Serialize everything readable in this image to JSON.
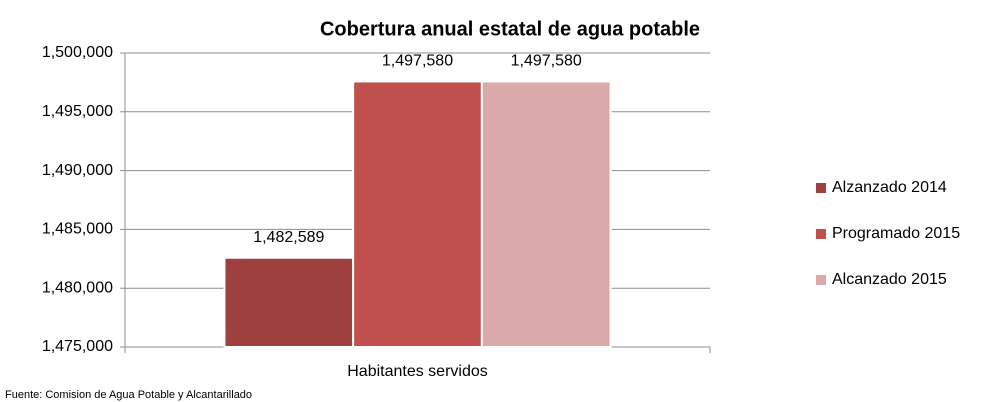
{
  "chart_data": {
    "type": "bar",
    "title": "Cobertura anual estatal de agua potable",
    "categories": [
      "Habitantes servidos"
    ],
    "series": [
      {
        "name": "Alzanzado 2014",
        "color": "#9e413e",
        "values": [
          1482589
        ],
        "value_labels": [
          "1,482,589"
        ]
      },
      {
        "name": "Programado 2015",
        "color": "#c0504d",
        "values": [
          1497580
        ],
        "value_labels": [
          "1,497,580"
        ]
      },
      {
        "name": "Alcanzado 2015",
        "color": "#d9aaa9",
        "values": [
          1497580
        ],
        "value_labels": [
          "1,497,580"
        ]
      }
    ],
    "ylim": [
      1475000,
      1500000
    ],
    "yticks": [
      {
        "value": 1475000,
        "label": "1,475,000"
      },
      {
        "value": 1480000,
        "label": "1,480,000"
      },
      {
        "value": 1485000,
        "label": "1,485,000"
      },
      {
        "value": 1490000,
        "label": "1,490,000"
      },
      {
        "value": 1495000,
        "label": "1,495,000"
      },
      {
        "value": 1500000,
        "label": "1,500,000"
      }
    ],
    "grid": true,
    "legend": "right",
    "source": "Fuente:  Comision de Agua Potable y Alcantarillado"
  }
}
